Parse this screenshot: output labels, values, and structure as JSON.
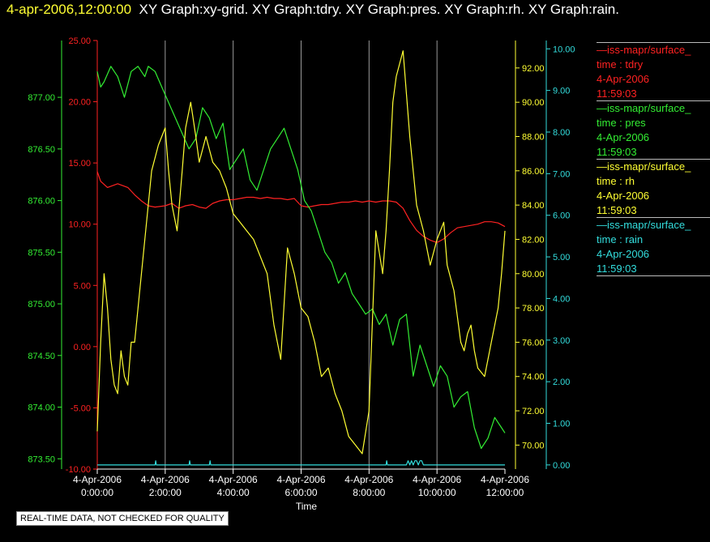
{
  "header": {
    "datetime": "4-apr-2006,12:00:00",
    "graph_titles": "XY Graph:xy-grid.  XY Graph:tdry.  XY Graph:pres.  XY Graph:rh.  XY Graph:rain."
  },
  "legend": [
    {
      "name": "—iss-mapr/surface_",
      "label": "time : tdry",
      "date": "4-Apr-2006",
      "time": "11:59:03",
      "color": "#ff2222"
    },
    {
      "name": "—iss-mapr/surface_",
      "label": "time : pres",
      "date": "4-Apr-2006",
      "time": "11:59:03",
      "color": "#33ee33"
    },
    {
      "name": "—iss-mapr/surface_",
      "label": "time : rh",
      "date": "4-Apr-2006",
      "time": "11:59:03",
      "color": "#ffff33"
    },
    {
      "name": "—iss-mapr/surface_",
      "label": "time : rain",
      "date": "4-Apr-2006",
      "time": "11:59:03",
      "color": "#33dddd"
    }
  ],
  "disclaimer": "REAL-TIME DATA, NOT CHECKED FOR QUALITY",
  "chart_data": {
    "type": "line",
    "xlabel": "Time",
    "x_ticks": [
      {
        "date": "4-Apr-2006",
        "time": "0:00:00"
      },
      {
        "date": "4-Apr-2006",
        "time": "2:00:00"
      },
      {
        "date": "4-Apr-2006",
        "time": "4:00:00"
      },
      {
        "date": "4-Apr-2006",
        "time": "6:00:00"
      },
      {
        "date": "4-Apr-2006",
        "time": "8:00:00"
      },
      {
        "date": "4-Apr-2006",
        "time": "10:00:00"
      },
      {
        "date": "4-Apr-2006",
        "time": "12:00:00"
      }
    ],
    "xlim_hours": [
      0,
      12
    ],
    "axes": {
      "tdry": {
        "ticks": [
          "25.00",
          "20.00",
          "15.00",
          "10.00",
          "5.00",
          "0.00",
          "-5.00",
          "-10.00"
        ],
        "ylim": [
          -10,
          25
        ],
        "color": "#ff2222"
      },
      "pres": {
        "ticks": [
          "877.00",
          "876.50",
          "876.00",
          "875.50",
          "875.00",
          "874.50",
          "874.00",
          "873.50"
        ],
        "ylim": [
          873.4,
          877.55
        ],
        "color": "#33ee33"
      },
      "rh": {
        "ticks": [
          "92.00",
          "90.00",
          "88.00",
          "86.00",
          "84.00",
          "82.00",
          "80.00",
          "78.00",
          "76.00",
          "74.00",
          "72.00",
          "70.00"
        ],
        "ylim": [
          68.6,
          93.6
        ],
        "color": "#ffff33"
      },
      "rain": {
        "ticks": [
          "10.00",
          "9.00",
          "8.00",
          "7.00",
          "6.00",
          "5.00",
          "4.00",
          "3.00",
          "2.00",
          "1.00",
          "0.00"
        ],
        "ylim": [
          -0.1,
          10.2
        ],
        "color": "#33dddd"
      }
    },
    "vgrid": true,
    "legend_position": "right",
    "series": [
      {
        "name": "tdry",
        "axis": "tdry",
        "x": [
          0,
          0.1,
          0.3,
          0.6,
          0.9,
          1.1,
          1.3,
          1.5,
          1.7,
          2.0,
          2.2,
          2.4,
          2.6,
          2.8,
          3.0,
          3.2,
          3.4,
          3.6,
          3.8,
          4.0,
          4.2,
          4.4,
          4.6,
          4.8,
          5.0,
          5.2,
          5.4,
          5.6,
          5.8,
          6.0,
          6.2,
          6.4,
          6.6,
          6.8,
          7.0,
          7.2,
          7.4,
          7.6,
          7.8,
          8.0,
          8.2,
          8.4,
          8.6,
          8.8,
          9.0,
          9.2,
          9.4,
          9.6,
          9.8,
          10.0,
          10.2,
          10.4,
          10.6,
          10.8,
          11.0,
          11.2,
          11.4,
          11.6,
          11.8,
          12.0
        ],
        "y": [
          14.3,
          13.5,
          13.0,
          13.3,
          13.0,
          12.4,
          11.9,
          11.5,
          11.4,
          11.5,
          11.7,
          11.3,
          11.5,
          11.6,
          11.4,
          11.3,
          11.7,
          11.9,
          12.0,
          12.0,
          12.1,
          12.2,
          12.2,
          12.1,
          12.2,
          12.1,
          12.1,
          12.0,
          12.1,
          11.5,
          11.4,
          11.5,
          11.6,
          11.6,
          11.7,
          11.8,
          11.8,
          11.9,
          11.8,
          11.9,
          11.8,
          11.9,
          11.9,
          11.8,
          11.3,
          10.3,
          9.5,
          9.0,
          8.7,
          8.5,
          8.8,
          9.3,
          9.7,
          9.8,
          9.9,
          10.0,
          10.2,
          10.2,
          10.1,
          9.8
        ]
      },
      {
        "name": "pres",
        "axis": "pres",
        "x": [
          0,
          0.1,
          0.2,
          0.4,
          0.6,
          0.8,
          1.0,
          1.2,
          1.4,
          1.5,
          1.7,
          1.9,
          2.1,
          2.3,
          2.5,
          2.7,
          2.9,
          3.1,
          3.3,
          3.5,
          3.7,
          3.9,
          4.1,
          4.3,
          4.5,
          4.7,
          4.9,
          5.1,
          5.3,
          5.5,
          5.7,
          5.9,
          6.1,
          6.3,
          6.5,
          6.7,
          6.9,
          7.1,
          7.3,
          7.5,
          7.7,
          7.9,
          8.1,
          8.3,
          8.5,
          8.7,
          8.9,
          9.1,
          9.3,
          9.5,
          9.7,
          9.9,
          10.1,
          10.3,
          10.5,
          10.7,
          10.9,
          11.1,
          11.3,
          11.5,
          11.7,
          11.9,
          12.0
        ],
        "y": [
          877.25,
          877.1,
          877.15,
          877.3,
          877.2,
          877.0,
          877.25,
          877.3,
          877.2,
          877.3,
          877.25,
          877.1,
          876.95,
          876.8,
          876.65,
          876.5,
          876.6,
          876.9,
          876.8,
          876.6,
          876.75,
          876.3,
          876.4,
          876.5,
          876.2,
          876.1,
          876.3,
          876.5,
          876.6,
          876.7,
          876.5,
          876.3,
          876.0,
          875.9,
          875.7,
          875.5,
          875.4,
          875.2,
          875.3,
          875.1,
          875.0,
          874.9,
          874.95,
          874.8,
          874.9,
          874.6,
          874.85,
          874.9,
          874.3,
          874.6,
          874.4,
          874.2,
          874.4,
          874.3,
          874.0,
          874.1,
          874.15,
          873.8,
          873.6,
          873.7,
          873.9,
          873.8,
          873.75
        ]
      },
      {
        "name": "rh",
        "axis": "rh",
        "x": [
          0,
          0.1,
          0.2,
          0.3,
          0.4,
          0.5,
          0.6,
          0.7,
          0.8,
          0.9,
          1.0,
          1.1,
          1.2,
          1.4,
          1.6,
          1.8,
          2.0,
          2.1,
          2.2,
          2.35,
          2.5,
          2.6,
          2.75,
          2.9,
          3.0,
          3.2,
          3.4,
          3.6,
          3.8,
          4.0,
          4.2,
          4.4,
          4.6,
          4.8,
          5.0,
          5.1,
          5.2,
          5.3,
          5.4,
          5.6,
          5.8,
          6.0,
          6.2,
          6.4,
          6.6,
          6.8,
          7.0,
          7.2,
          7.4,
          7.6,
          7.8,
          8.0,
          8.2,
          8.4,
          8.5,
          8.6,
          8.7,
          8.8,
          9.0,
          9.2,
          9.4,
          9.6,
          9.7,
          9.8,
          10.0,
          10.2,
          10.3,
          10.5,
          10.7,
          10.8,
          10.9,
          11.0,
          11.1,
          11.2,
          11.4,
          11.6,
          11.8,
          11.9,
          12.0
        ],
        "y": [
          70.8,
          76.0,
          80.0,
          78.0,
          75.0,
          73.5,
          73.0,
          75.5,
          74.0,
          73.5,
          76.0,
          76.0,
          78.0,
          82.0,
          86.0,
          87.5,
          88.5,
          86.0,
          84.0,
          82.5,
          86.0,
          88.5,
          90.0,
          88.0,
          86.5,
          88.0,
          86.5,
          86.0,
          85.0,
          83.5,
          83.0,
          82.5,
          82.0,
          81.0,
          80.0,
          78.5,
          77.0,
          76.0,
          75.0,
          81.5,
          80.0,
          78.0,
          77.5,
          76.0,
          74.0,
          74.5,
          73.0,
          72.0,
          70.5,
          70.0,
          69.5,
          72.0,
          82.5,
          80.0,
          82.5,
          86.0,
          90.0,
          91.5,
          93.0,
          88.0,
          84.0,
          82.5,
          81.5,
          80.5,
          82.0,
          83.0,
          80.5,
          79.0,
          76.0,
          75.5,
          76.5,
          77.0,
          75.5,
          74.5,
          74.0,
          76.0,
          78.0,
          80.0,
          82.5
        ]
      },
      {
        "name": "rain",
        "axis": "rain",
        "x": [
          0,
          1.7,
          1.72,
          1.74,
          1.9,
          2.7,
          2.72,
          2.74,
          3.3,
          3.32,
          3.34,
          8.5,
          8.52,
          8.54,
          9.1,
          9.15,
          9.2,
          9.25,
          9.3,
          9.35,
          9.4,
          9.45,
          9.5,
          9.55,
          9.6,
          12.0
        ],
        "y": [
          0,
          0,
          0.1,
          0,
          0,
          0,
          0.1,
          0,
          0,
          0.1,
          0,
          0,
          0.1,
          0,
          0,
          0.1,
          0,
          0.1,
          0,
          0.1,
          0.1,
          0,
          0.1,
          0.1,
          0,
          0
        ]
      }
    ]
  }
}
